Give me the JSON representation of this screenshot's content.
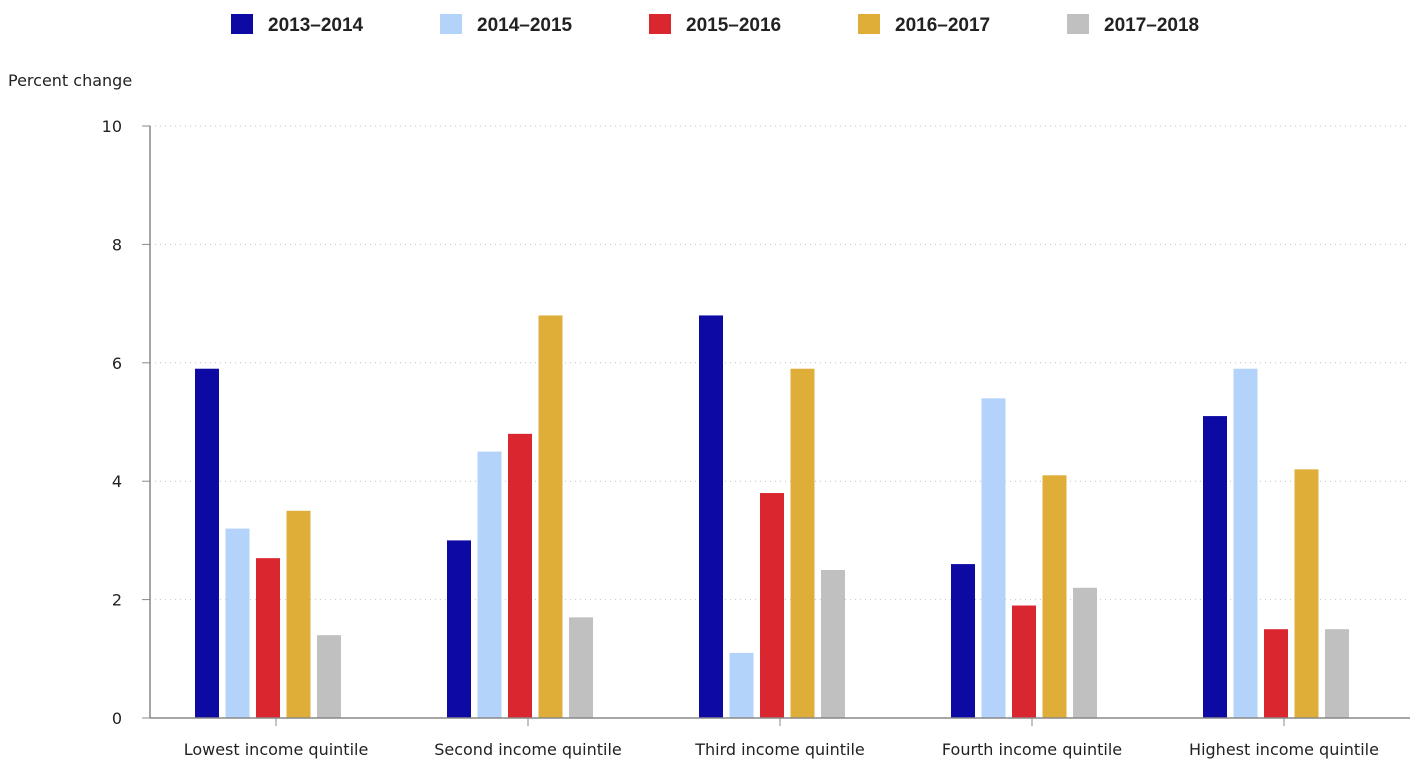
{
  "chart_data": {
    "type": "bar",
    "title": "",
    "ylabel": "Percent change",
    "xlabel": "",
    "ylim": [
      0,
      10
    ],
    "yticks": [
      0,
      2,
      4,
      6,
      8,
      10
    ],
    "grid": true,
    "legend_position": "top",
    "categories": [
      "Lowest income quintile",
      "Second income quintile",
      "Third income quintile",
      "Fourth income quintile",
      "Highest income quintile"
    ],
    "series": [
      {
        "name": "2013–2014",
        "color": "#0d0aa3",
        "values": [
          5.9,
          3.0,
          6.8,
          2.6,
          5.1
        ]
      },
      {
        "name": "2014–2015",
        "color": "#b3d3fb",
        "values": [
          3.2,
          4.5,
          1.1,
          5.4,
          5.9
        ]
      },
      {
        "name": "2015–2016",
        "color": "#d9262f",
        "values": [
          2.7,
          4.8,
          3.8,
          1.9,
          1.5
        ]
      },
      {
        "name": "2016–2017",
        "color": "#deae38",
        "values": [
          3.5,
          6.8,
          5.9,
          4.1,
          4.2
        ]
      },
      {
        "name": "2017–2018",
        "color": "#c0c0c0",
        "values": [
          1.4,
          1.7,
          2.5,
          2.2,
          1.5
        ]
      }
    ]
  }
}
